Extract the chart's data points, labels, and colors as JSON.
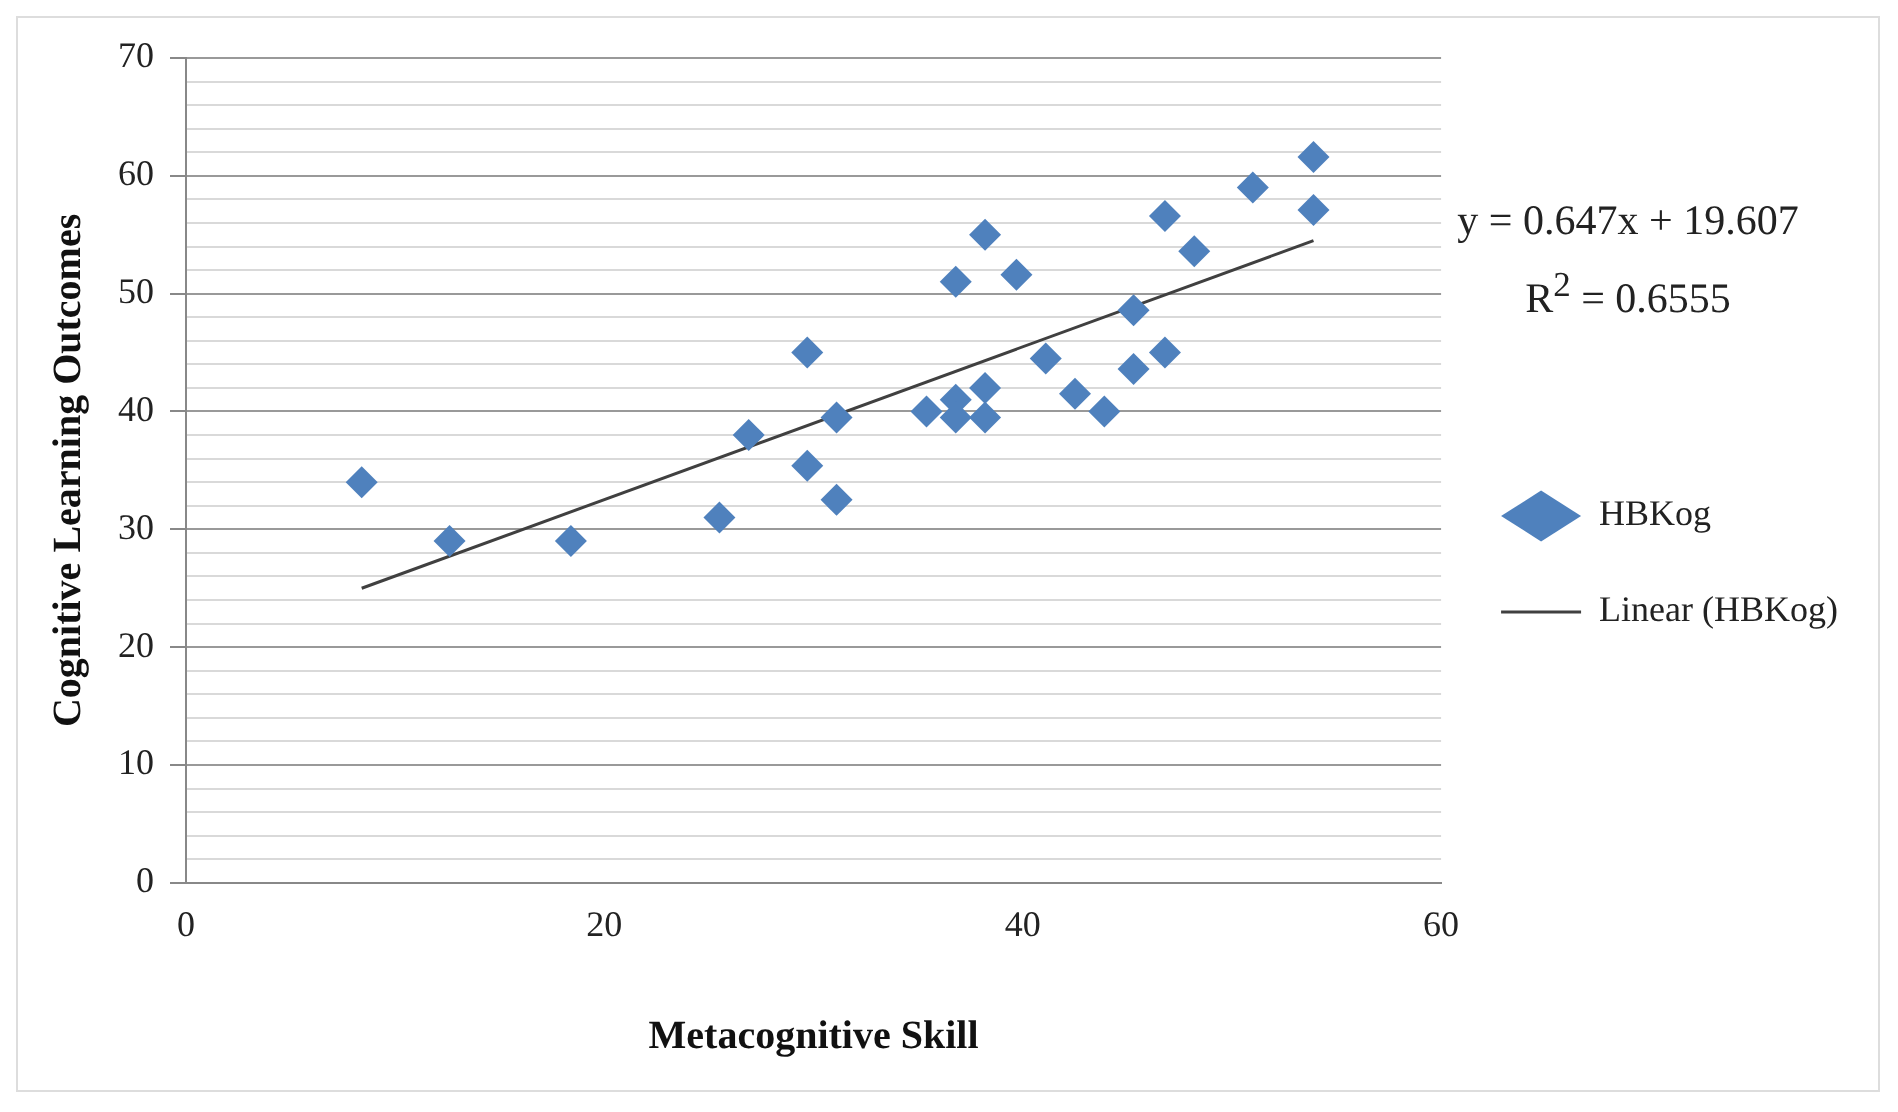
{
  "chart_data": {
    "type": "scatter",
    "xlabel": "Metacognitive Skill",
    "ylabel": "Cognitive Learning Outcomes",
    "annotations": [
      "y = 0.647x + 19.607",
      "R$^{2}$ = 0.6555"
    ],
    "series": [
      {
        "name": "HBKog",
        "color": "#4f81bd",
        "marker": "diamond",
        "x": [
          8.4,
          12.6,
          18.4,
          25.5,
          26.9,
          29.7,
          29.7,
          31.1,
          31.1,
          35.4,
          36.8,
          36.8,
          36.8,
          38.2,
          38.2,
          38.2,
          39.7,
          41.1,
          42.5,
          43.9,
          45.3,
          45.3,
          46.8,
          46.8,
          48.2,
          51.0,
          53.9,
          53.9
        ],
        "values": [
          34,
          29,
          29,
          31,
          38,
          45,
          35.4,
          39.5,
          32.5,
          40,
          51,
          41,
          39.5,
          55,
          42,
          39.5,
          51.6,
          44.5,
          41.5,
          40,
          48.6,
          43.6,
          56.6,
          45,
          53.6,
          59,
          61.6,
          57.1
        ]
      },
      {
        "name": "Linear (HBKog)",
        "type": "line",
        "color": "#404040",
        "marker": "none",
        "x": [
          8.4,
          53.9
        ],
        "values": [
          25.0,
          54.5
        ]
      }
    ],
    "xlim": [
      0,
      60
    ],
    "xticks": [
      0,
      20,
      40,
      60
    ],
    "ylim": [
      0,
      70
    ],
    "yticks": [
      0,
      {
        "value": 2,
        "label": null
      },
      {
        "value": 4,
        "label": null
      },
      {
        "value": 6,
        "label": null
      },
      {
        "value": 8,
        "label": null
      },
      10,
      {
        "value": 12,
        "label": null
      },
      {
        "value": 14,
        "label": null
      },
      {
        "value": 16,
        "label": null
      },
      {
        "value": 18,
        "label": null
      },
      20,
      {
        "value": 22,
        "label": null
      },
      {
        "value": 24,
        "label": null
      },
      {
        "value": 26,
        "label": null
      },
      {
        "value": 28,
        "label": null
      },
      30,
      {
        "value": 32,
        "label": null
      },
      {
        "value": 34,
        "label": null
      },
      {
        "value": 36,
        "label": null
      },
      {
        "value": 38,
        "label": null
      },
      40,
      {
        "value": 42,
        "label": null
      },
      {
        "value": 44,
        "label": null
      },
      {
        "value": 46,
        "label": null
      },
      {
        "value": 48,
        "label": null
      },
      50,
      {
        "value": 52,
        "label": null
      },
      {
        "value": 54,
        "label": null
      },
      {
        "value": 56,
        "label": null
      },
      {
        "value": 58,
        "label": null
      },
      60,
      {
        "value": 62,
        "label": null
      },
      {
        "value": 64,
        "label": null
      },
      {
        "value": 66,
        "label": null
      },
      {
        "value": 68,
        "label": null
      },
      70
    ],
    "grid": "y",
    "legend": "right"
  }
}
